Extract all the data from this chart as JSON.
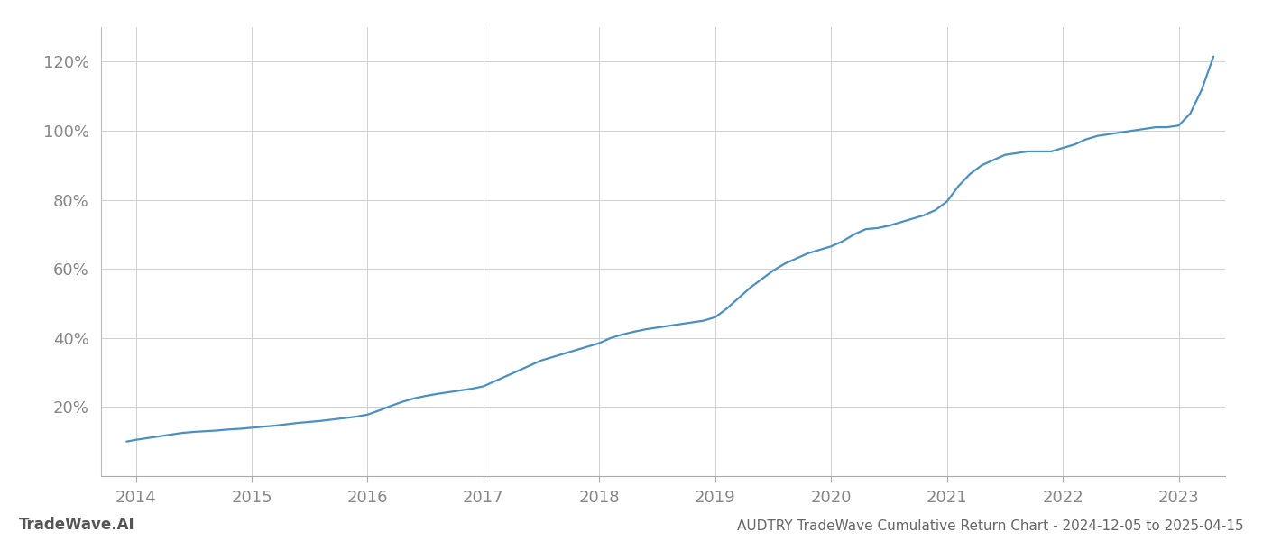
{
  "title": "AUDTRY TradeWave Cumulative Return Chart - 2024-12-05 to 2025-04-15",
  "watermark": "TradeWave.AI",
  "line_color": "#4a90c4",
  "background_color": "#ffffff",
  "grid_color": "#d0d0d0",
  "x_years": [
    2014,
    2015,
    2016,
    2017,
    2018,
    2019,
    2020,
    2021,
    2022,
    2023
  ],
  "x_data": [
    2013.92,
    2014.0,
    2014.1,
    2014.2,
    2014.3,
    2014.4,
    2014.5,
    2014.6,
    2014.7,
    2014.8,
    2014.9,
    2015.0,
    2015.1,
    2015.2,
    2015.3,
    2015.4,
    2015.5,
    2015.6,
    2015.7,
    2015.8,
    2015.9,
    2016.0,
    2016.1,
    2016.2,
    2016.3,
    2016.4,
    2016.5,
    2016.6,
    2016.7,
    2016.8,
    2016.9,
    2017.0,
    2017.1,
    2017.2,
    2017.3,
    2017.4,
    2017.5,
    2017.6,
    2017.7,
    2017.8,
    2017.9,
    2018.0,
    2018.1,
    2018.2,
    2018.3,
    2018.4,
    2018.5,
    2018.6,
    2018.7,
    2018.8,
    2018.9,
    2019.0,
    2019.1,
    2019.2,
    2019.3,
    2019.4,
    2019.5,
    2019.6,
    2019.7,
    2019.8,
    2019.9,
    2020.0,
    2020.1,
    2020.2,
    2020.3,
    2020.4,
    2020.5,
    2020.6,
    2020.7,
    2020.8,
    2020.9,
    2021.0,
    2021.1,
    2021.2,
    2021.3,
    2021.4,
    2021.5,
    2021.6,
    2021.7,
    2021.8,
    2021.9,
    2022.0,
    2022.1,
    2022.2,
    2022.3,
    2022.4,
    2022.5,
    2022.6,
    2022.7,
    2022.8,
    2022.9,
    2023.0,
    2023.1,
    2023.2,
    2023.3
  ],
  "y_data": [
    10.0,
    10.5,
    11.0,
    11.5,
    12.0,
    12.5,
    12.8,
    13.0,
    13.2,
    13.5,
    13.7,
    14.0,
    14.3,
    14.6,
    15.0,
    15.4,
    15.7,
    16.0,
    16.4,
    16.8,
    17.2,
    17.8,
    19.0,
    20.3,
    21.5,
    22.5,
    23.2,
    23.8,
    24.3,
    24.8,
    25.3,
    26.0,
    27.5,
    29.0,
    30.5,
    32.0,
    33.5,
    34.5,
    35.5,
    36.5,
    37.5,
    38.5,
    40.0,
    41.0,
    41.8,
    42.5,
    43.0,
    43.5,
    44.0,
    44.5,
    45.0,
    46.0,
    48.5,
    51.5,
    54.5,
    57.0,
    59.5,
    61.5,
    63.0,
    64.5,
    65.5,
    66.5,
    68.0,
    70.0,
    71.5,
    71.8,
    72.5,
    73.5,
    74.5,
    75.5,
    77.0,
    79.5,
    84.0,
    87.5,
    90.0,
    91.5,
    93.0,
    93.5,
    94.0,
    94.0,
    94.0,
    95.0,
    96.0,
    97.5,
    98.5,
    99.0,
    99.5,
    100.0,
    100.5,
    101.0,
    101.0,
    101.5,
    105.0,
    112.0,
    121.5
  ],
  "ylim": [
    0,
    130
  ],
  "yticks": [
    20,
    40,
    60,
    80,
    100,
    120
  ],
  "xlim": [
    2013.7,
    2023.4
  ],
  "tick_color": "#888888",
  "title_color": "#666666",
  "watermark_color": "#555555",
  "title_fontsize": 11,
  "tick_fontsize": 13,
  "watermark_fontsize": 12,
  "line_width": 1.6
}
